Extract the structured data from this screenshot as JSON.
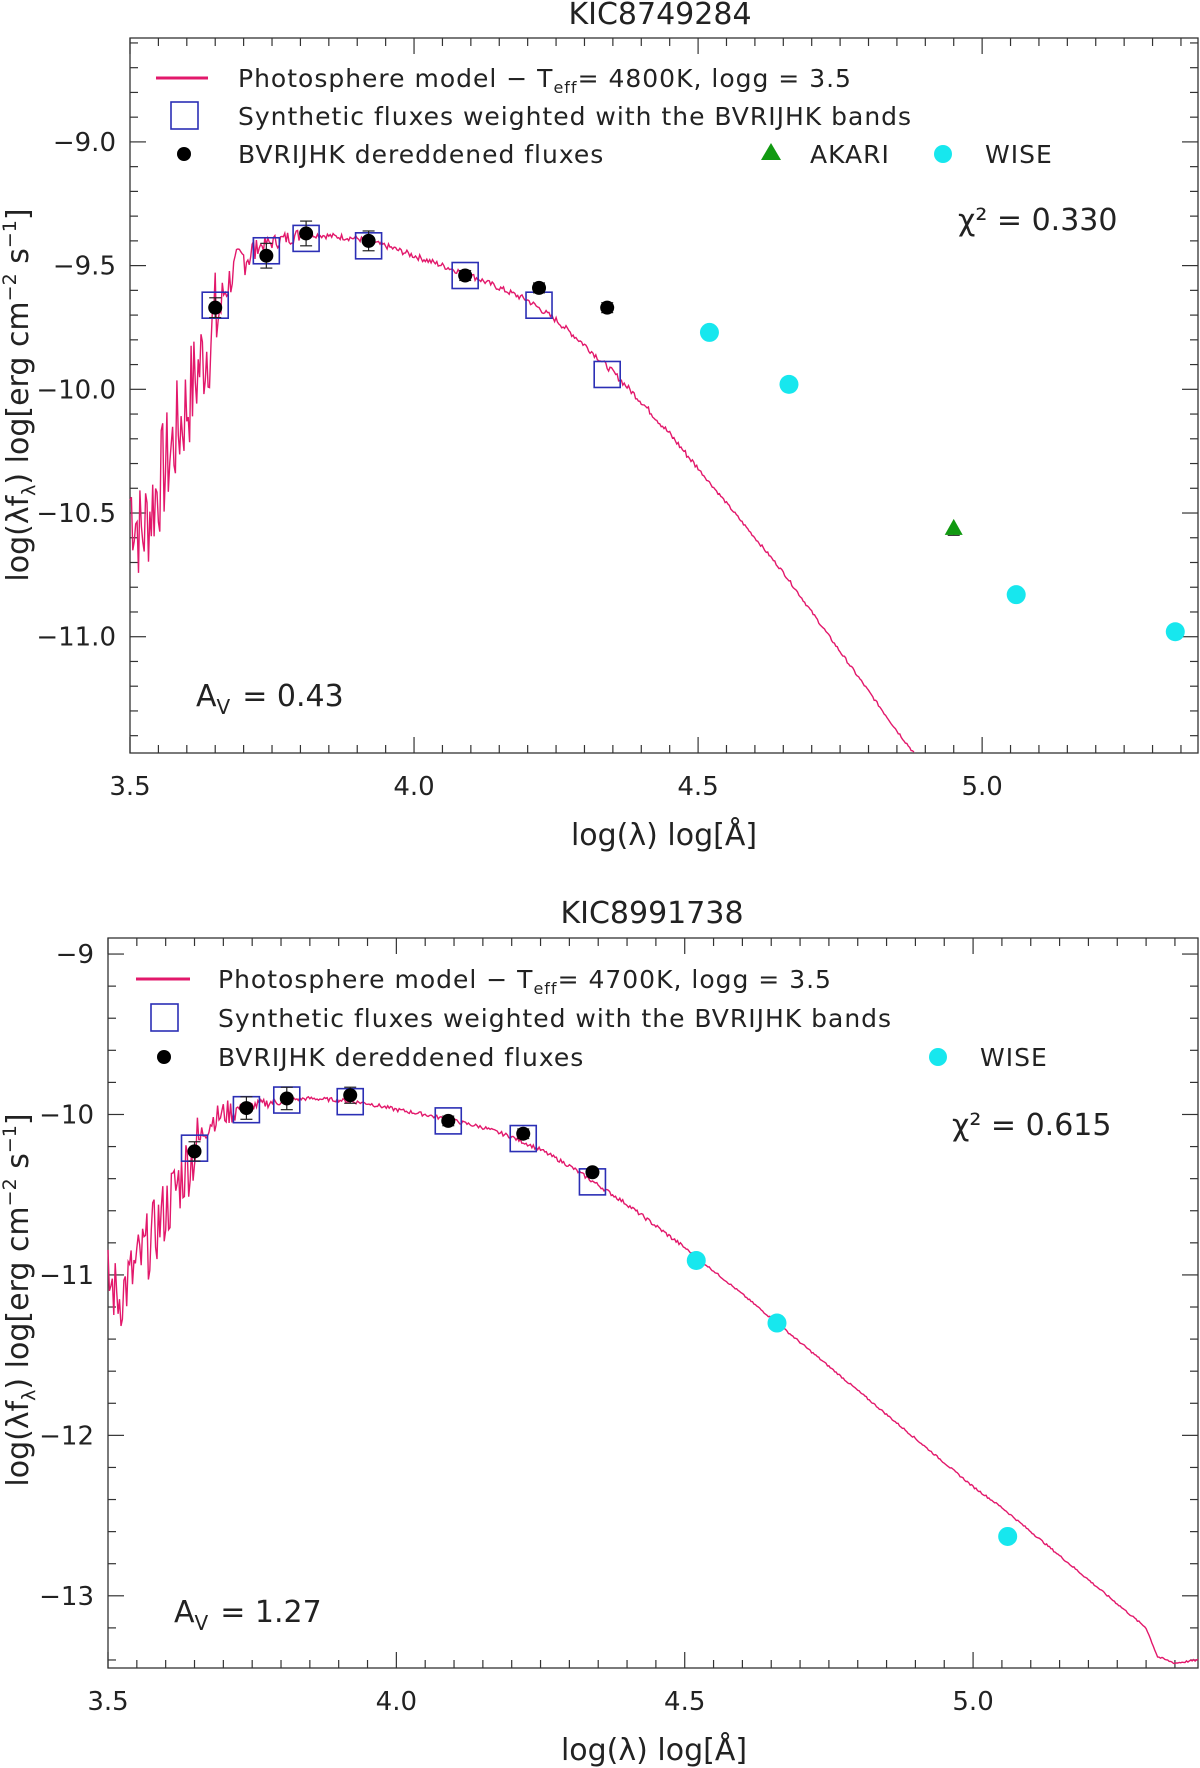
{
  "chart_data": [
    {
      "type": "scatter",
      "title": "KIC8749284",
      "xlabel": "log(λ)  log[Å]",
      "ylabel": "log(λfλ) log[erg cm⁻² s⁻¹]",
      "xlim": [
        3.5,
        5.38
      ],
      "ylim": [
        -11.47,
        -8.58
      ],
      "x_ticks": [
        3.5,
        4.0,
        4.5,
        5.0
      ],
      "x_tick_labels": [
        "3.5",
        "4.0",
        "4.5",
        "5.0"
      ],
      "y_ticks": [
        -9.0,
        -9.5,
        -10.0,
        -10.5,
        -11.0
      ],
      "y_tick_labels": [
        "−9.0",
        "−9.5",
        "−10.0",
        "−10.5",
        "−11.0"
      ],
      "legend": {
        "model": "Photosphere model − T",
        "model_sub": "eff",
        "model_teff": "= 4800K,  logg = 3.5",
        "synthetic": "Synthetic fluxes weighted with the BVRIJHK bands",
        "dereddened": "BVRIJHK dereddened fluxes",
        "akari": "AKARI",
        "wise": "WISE"
      },
      "chi2_label": "χ² = 0.330",
      "av_label": "A",
      "av_sub": "V",
      "av_value": "= 0.43",
      "series": [
        {
          "name": "Synthetic fluxes",
          "x": [
            3.65,
            3.74,
            3.81,
            3.92,
            4.09,
            4.22,
            4.34
          ],
          "y": [
            -9.66,
            -9.44,
            -9.39,
            -9.42,
            -9.54,
            -9.66,
            -9.94
          ]
        },
        {
          "name": "BVRIJHK dereddened fluxes",
          "x": [
            3.65,
            3.74,
            3.81,
            3.92,
            4.09,
            4.22,
            4.34
          ],
          "y": [
            -9.67,
            -9.46,
            -9.37,
            -9.4,
            -9.54,
            -9.59,
            -9.67
          ],
          "yerr": [
            0.04,
            0.05,
            0.05,
            0.04,
            0.02,
            0.02,
            0.02
          ]
        },
        {
          "name": "AKARI",
          "x": [
            4.95
          ],
          "y": [
            -10.56
          ],
          "yerr": [
            0.03
          ]
        },
        {
          "name": "WISE",
          "x": [
            4.52,
            4.66,
            5.06,
            5.34
          ],
          "y": [
            -9.77,
            -9.98,
            -10.83,
            -10.98
          ]
        }
      ],
      "model_curve": {
        "name": "Photosphere model",
        "smooth_x": [
          3.5,
          3.52,
          3.55,
          3.58,
          3.6,
          3.62,
          3.64,
          3.66,
          3.68,
          3.7,
          3.72,
          3.75,
          3.78,
          3.8,
          3.85,
          3.9,
          3.95,
          4.0,
          4.05,
          4.1,
          4.15,
          4.2,
          4.25,
          4.3,
          4.35,
          4.4,
          4.45,
          4.5,
          4.55,
          4.6,
          4.65,
          4.7,
          4.75,
          4.8,
          4.85,
          4.88
        ],
        "smooth_y": [
          -10.4,
          -10.55,
          -10.35,
          -10.15,
          -10.02,
          -9.88,
          -9.75,
          -9.62,
          -9.52,
          -9.45,
          -9.42,
          -9.4,
          -9.38,
          -9.37,
          -9.38,
          -9.39,
          -9.42,
          -9.46,
          -9.5,
          -9.54,
          -9.59,
          -9.64,
          -9.72,
          -9.82,
          -9.93,
          -10.05,
          -10.18,
          -10.32,
          -10.46,
          -10.6,
          -10.74,
          -10.9,
          -11.06,
          -11.22,
          -11.38,
          -11.47
        ],
        "noise_until": 3.8
      }
    },
    {
      "type": "scatter",
      "title": "KIC8991738",
      "xlabel": "log(λ)  log[Å]",
      "ylabel": "log(λfλ) log[erg cm⁻² s⁻¹]",
      "xlim": [
        3.5,
        5.39
      ],
      "ylim": [
        -13.45,
        -8.9
      ],
      "x_ticks": [
        3.5,
        4.0,
        4.5,
        5.0
      ],
      "x_tick_labels": [
        "3.5",
        "4.0",
        "4.5",
        "5.0"
      ],
      "y_ticks": [
        -9,
        -10,
        -11,
        -12,
        -13
      ],
      "y_tick_labels": [
        "−9",
        "−10",
        "−11",
        "−12",
        "−13"
      ],
      "legend": {
        "model": "Photosphere model − T",
        "model_sub": "eff",
        "model_teff": "= 4700K,  logg = 3.5",
        "synthetic": "Synthetic fluxes weighted with the BVRIJHK bands",
        "dereddened": "BVRIJHK dereddened fluxes",
        "wise": "WISE"
      },
      "chi2_label": "χ² = 0.615",
      "av_label": "A",
      "av_sub": "V",
      "av_value": "= 1.27",
      "series": [
        {
          "name": "Synthetic fluxes",
          "x": [
            3.65,
            3.74,
            3.81,
            3.92,
            4.09,
            4.22,
            4.34
          ],
          "y": [
            -10.21,
            -9.97,
            -9.91,
            -9.92,
            -10.04,
            -10.15,
            -10.42
          ]
        },
        {
          "name": "BVRIJHK dereddened fluxes",
          "x": [
            3.65,
            3.74,
            3.81,
            3.92,
            4.09,
            4.22,
            4.34
          ],
          "y": [
            -10.23,
            -9.96,
            -9.9,
            -9.88,
            -10.04,
            -10.12,
            -10.36
          ],
          "yerr": [
            0.06,
            0.07,
            0.07,
            0.05,
            0.03,
            0.03,
            0.02
          ]
        },
        {
          "name": "WISE",
          "x": [
            4.52,
            4.66,
            5.06
          ],
          "y": [
            -10.91,
            -11.3,
            -12.63
          ]
        }
      ],
      "model_curve": {
        "name": "Photosphere model",
        "smooth_x": [
          3.5,
          3.52,
          3.55,
          3.58,
          3.6,
          3.62,
          3.64,
          3.66,
          3.68,
          3.7,
          3.72,
          3.75,
          3.78,
          3.8,
          3.85,
          3.9,
          3.95,
          4.0,
          4.05,
          4.1,
          4.15,
          4.2,
          4.25,
          4.3,
          4.35,
          4.4,
          4.5,
          4.6,
          4.7,
          4.8,
          4.9,
          5.0,
          5.05,
          5.1,
          5.2,
          5.3,
          5.32,
          5.35,
          5.39
        ],
        "smooth_y": [
          -11.0,
          -11.1,
          -10.9,
          -10.7,
          -10.55,
          -10.4,
          -10.25,
          -10.12,
          -10.02,
          -9.98,
          -9.96,
          -9.94,
          -9.92,
          -9.91,
          -9.9,
          -9.91,
          -9.93,
          -9.97,
          -10.0,
          -10.04,
          -10.08,
          -10.14,
          -10.22,
          -10.32,
          -10.44,
          -10.56,
          -10.83,
          -11.12,
          -11.42,
          -11.72,
          -12.02,
          -12.32,
          -12.45,
          -12.6,
          -12.9,
          -13.2,
          -13.38,
          -13.42,
          -13.4
        ],
        "noise_until": 3.8
      }
    }
  ],
  "colors": {
    "model": "#e2186b",
    "synthetic_square": "#2b2fb5",
    "dereddened": "#000000",
    "akari": "#119911",
    "wise": "#17e7ee",
    "axis": "#333333"
  }
}
